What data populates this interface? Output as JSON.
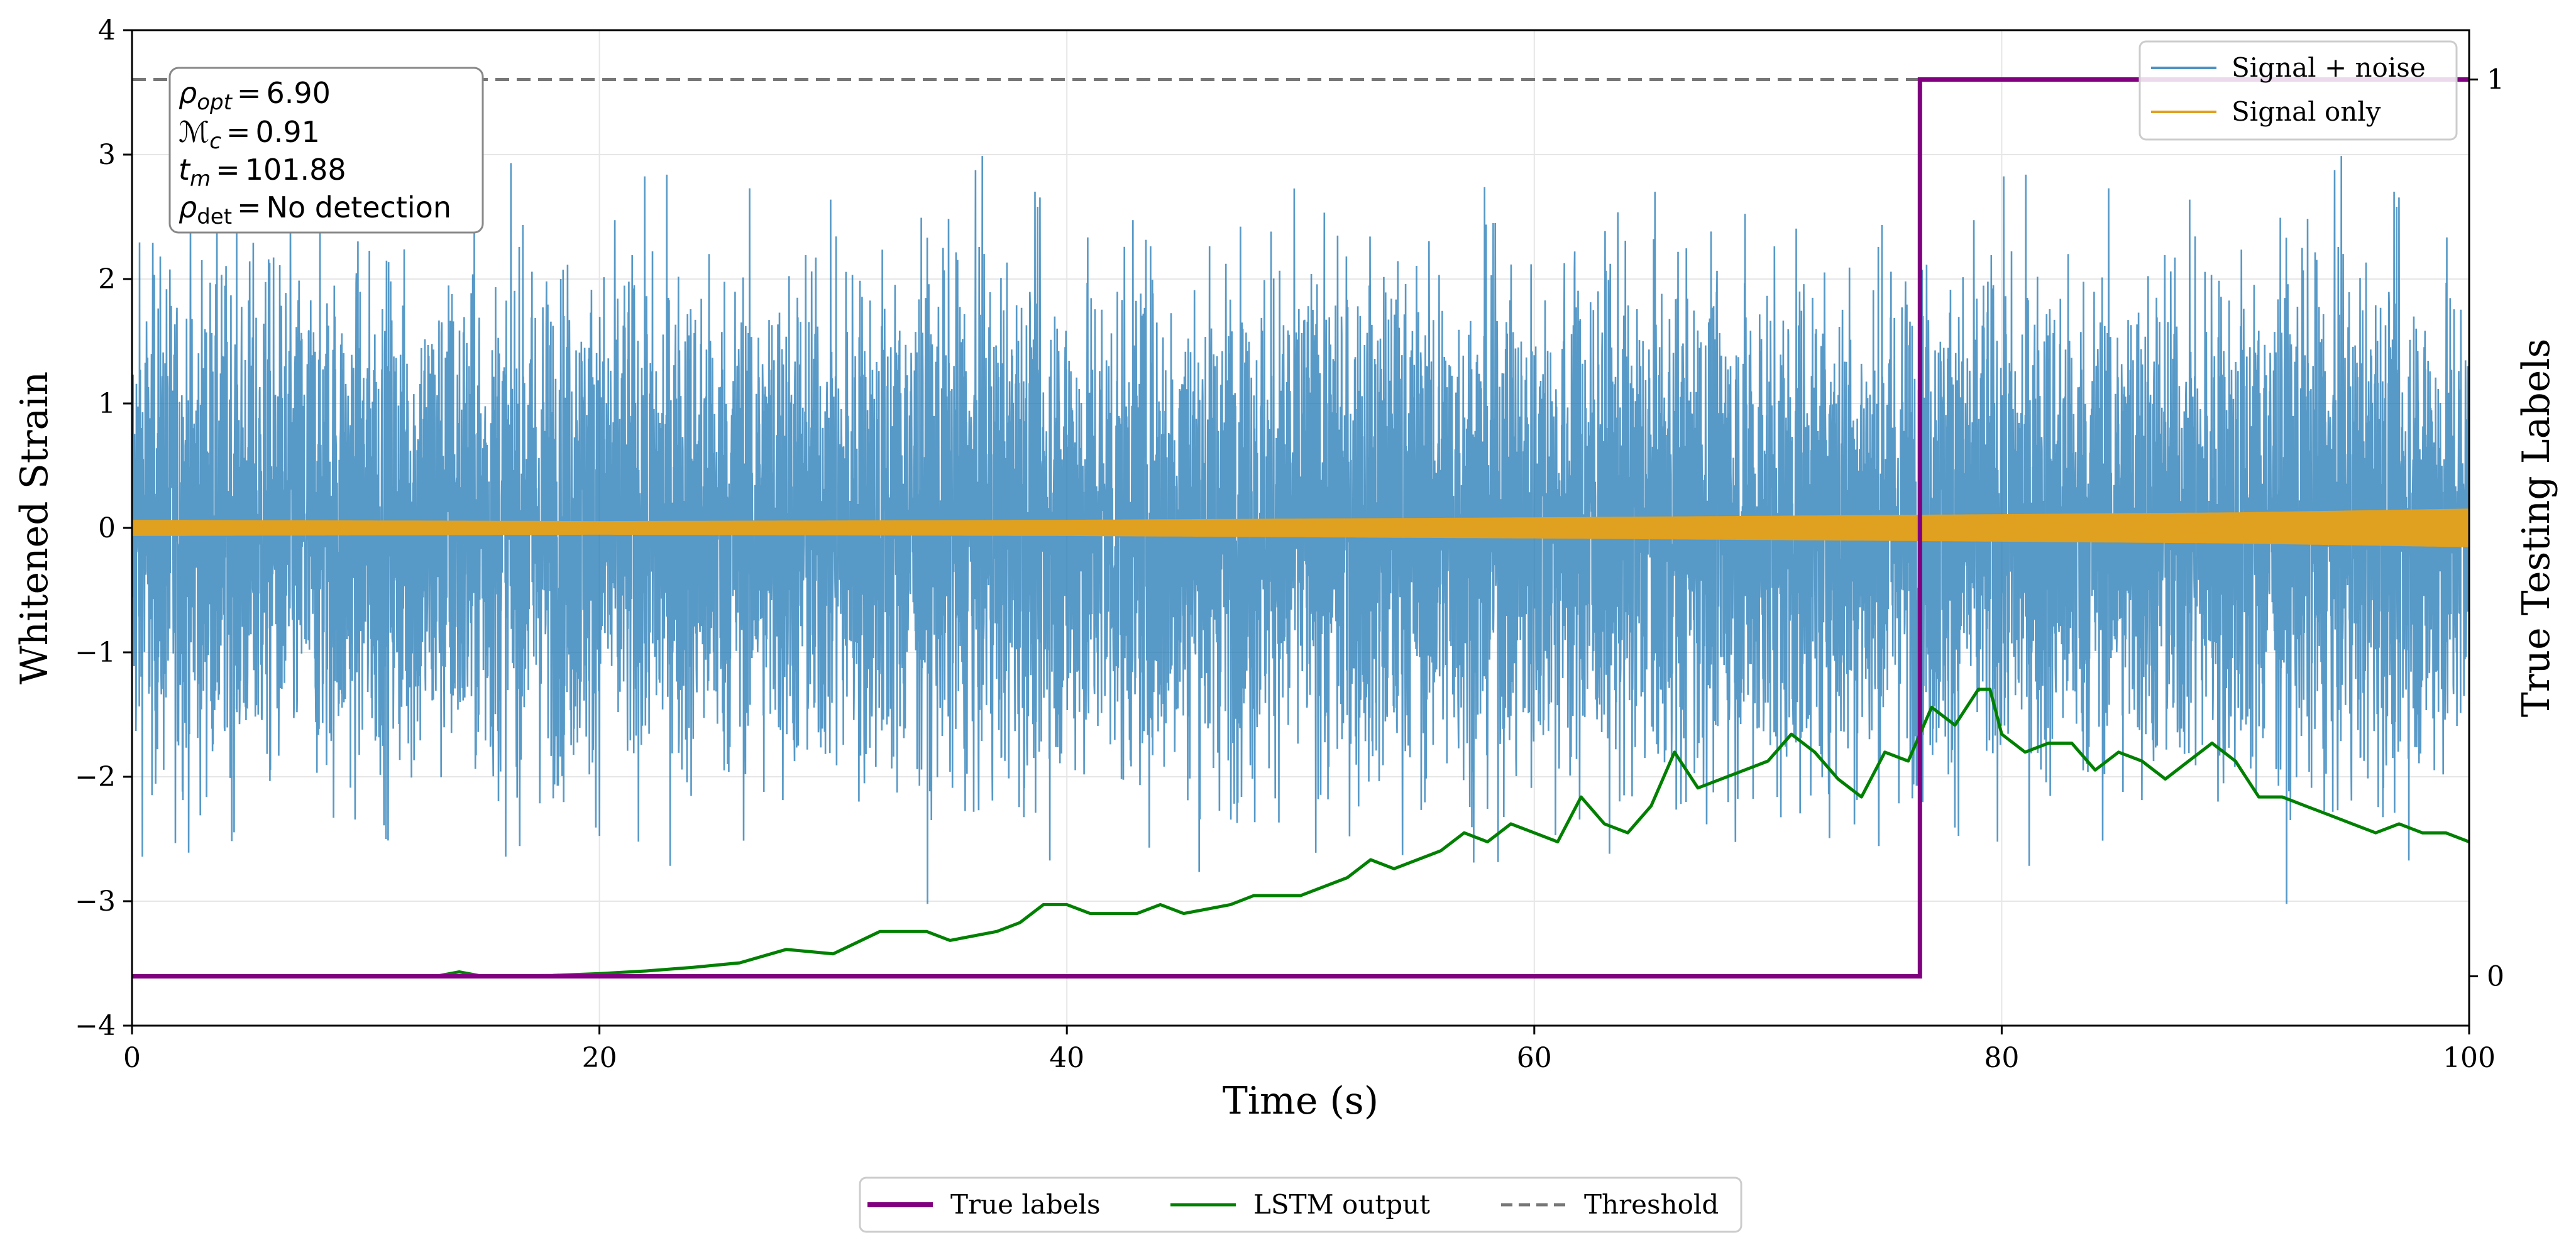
{
  "chart_data": {
    "type": "line",
    "x_axis": {
      "label": "Time (s)",
      "range": [
        0,
        100
      ],
      "ticks": [
        0,
        20,
        40,
        60,
        80,
        100
      ],
      "tick_labels": [
        "0",
        "20",
        "40",
        "60",
        "80",
        "100"
      ]
    },
    "y_left": {
      "label": "Whitened Strain",
      "range": [
        -4,
        4
      ],
      "ticks": [
        -4,
        -3,
        -2,
        -1,
        0,
        1,
        2,
        3,
        4
      ],
      "tick_labels": [
        "−4",
        "−3",
        "−2",
        "−1",
        "0",
        "1",
        "2",
        "3",
        "4"
      ]
    },
    "y_right": {
      "label": "True Testing Labels",
      "range": [
        -0.055,
        1.055
      ],
      "ticks": [
        0,
        1
      ],
      "tick_labels": [
        "0",
        "1"
      ]
    },
    "grid": true,
    "series": [
      {
        "name": "Signal + noise",
        "axis": "left",
        "color": "#1f77b4",
        "opacity": 0.75,
        "style": "solid",
        "noise_std": 1.0,
        "t_start": 0,
        "t_end": 100
      },
      {
        "name": "Signal only",
        "axis": "left",
        "color": "#e0a020",
        "style": "solid",
        "envelope": [
          [
            0,
            0.06
          ],
          [
            20,
            0.05
          ],
          [
            40,
            0.06
          ],
          [
            60,
            0.08
          ],
          [
            76,
            0.1
          ],
          [
            90,
            0.12
          ],
          [
            100,
            0.15
          ]
        ]
      },
      {
        "name": "True labels",
        "axis": "right",
        "color": "#800080",
        "style": "solid",
        "points": [
          [
            0,
            0
          ],
          [
            76.5,
            0
          ],
          [
            76.5,
            1
          ],
          [
            100,
            1
          ]
        ]
      },
      {
        "name": "LSTM output",
        "axis": "right",
        "color": "#008000",
        "style": "solid",
        "points": [
          [
            0,
            0
          ],
          [
            13,
            0
          ],
          [
            14,
            0.005
          ],
          [
            15,
            0
          ],
          [
            18,
            0.001
          ],
          [
            20,
            0.003
          ],
          [
            22,
            0.006
          ],
          [
            24,
            0.01
          ],
          [
            26,
            0.015
          ],
          [
            28,
            0.03
          ],
          [
            30,
            0.025
          ],
          [
            32,
            0.05
          ],
          [
            34,
            0.05
          ],
          [
            35,
            0.04
          ],
          [
            37,
            0.05
          ],
          [
            38,
            0.06
          ],
          [
            39,
            0.08
          ],
          [
            40,
            0.08
          ],
          [
            41,
            0.07
          ],
          [
            43,
            0.07
          ],
          [
            44,
            0.08
          ],
          [
            45,
            0.07
          ],
          [
            47,
            0.08
          ],
          [
            48,
            0.09
          ],
          [
            50,
            0.09
          ],
          [
            52,
            0.11
          ],
          [
            53,
            0.13
          ],
          [
            54,
            0.12
          ],
          [
            56,
            0.14
          ],
          [
            57,
            0.16
          ],
          [
            58,
            0.15
          ],
          [
            59,
            0.17
          ],
          [
            60,
            0.16
          ],
          [
            61,
            0.15
          ],
          [
            62,
            0.2
          ],
          [
            63,
            0.17
          ],
          [
            64,
            0.16
          ],
          [
            65,
            0.19
          ],
          [
            66,
            0.25
          ],
          [
            67,
            0.21
          ],
          [
            68,
            0.22
          ],
          [
            69,
            0.23
          ],
          [
            70,
            0.24
          ],
          [
            71,
            0.27
          ],
          [
            72,
            0.25
          ],
          [
            73,
            0.22
          ],
          [
            74,
            0.2
          ],
          [
            75,
            0.25
          ],
          [
            76,
            0.24
          ],
          [
            77,
            0.3
          ],
          [
            78,
            0.28
          ],
          [
            79,
            0.32
          ],
          [
            79.5,
            0.32
          ],
          [
            80,
            0.27
          ],
          [
            81,
            0.25
          ],
          [
            82,
            0.26
          ],
          [
            83,
            0.26
          ],
          [
            84,
            0.23
          ],
          [
            85,
            0.25
          ],
          [
            86,
            0.24
          ],
          [
            87,
            0.22
          ],
          [
            88,
            0.24
          ],
          [
            89,
            0.26
          ],
          [
            90,
            0.24
          ],
          [
            91,
            0.2
          ],
          [
            92,
            0.2
          ],
          [
            93,
            0.19
          ],
          [
            94,
            0.18
          ],
          [
            95,
            0.17
          ],
          [
            96,
            0.16
          ],
          [
            97,
            0.17
          ],
          [
            98,
            0.16
          ],
          [
            99,
            0.16
          ],
          [
            100,
            0.15
          ]
        ]
      },
      {
        "name": "Threshold",
        "axis": "right",
        "color": "#777777",
        "style": "dashed",
        "value": 1.0
      }
    ],
    "legend_upper": {
      "position": "top-right",
      "entries": [
        "Signal + noise",
        "Signal only"
      ]
    },
    "legend_lower": {
      "position": "bottom-center",
      "entries": [
        "True labels",
        "LSTM output",
        "Threshold"
      ]
    },
    "annotation": {
      "rho_opt": {
        "symbol": "ρ",
        "sub": "opt",
        "value": "6.90"
      },
      "mc": {
        "symbol": "ℳ",
        "sub": "c",
        "value": "0.91"
      },
      "tm": {
        "symbol": "t",
        "sub": "m",
        "value": "101.88"
      },
      "rho_det": {
        "symbol": "ρ",
        "sub": "det",
        "value": "No detection"
      },
      "equals": "="
    }
  }
}
